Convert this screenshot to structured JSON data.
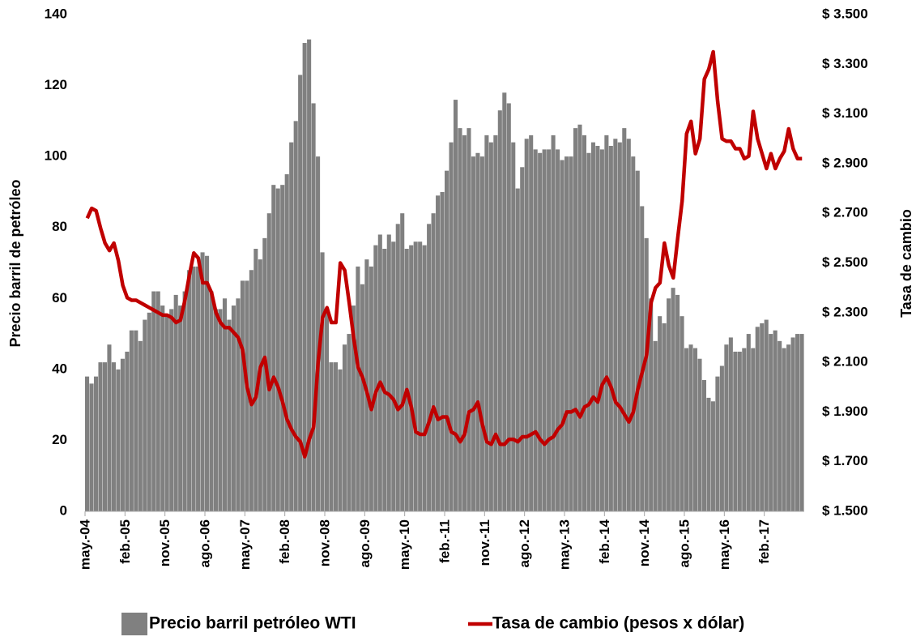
{
  "chart_data": {
    "type": "combo",
    "ylabel": "Precio barril de petróleo",
    "y2label": "Tasa de cambio",
    "ylim": [
      0,
      140
    ],
    "yticks": [
      0,
      20,
      40,
      60,
      80,
      100,
      120,
      140
    ],
    "y2lim": [
      1500,
      3500
    ],
    "y2ticks": [
      {
        "value": 1500,
        "label": "$ 1.500"
      },
      {
        "value": 1700,
        "label": "$ 1.700"
      },
      {
        "value": 1900,
        "label": "$ 1.900"
      },
      {
        "value": 2100,
        "label": "$ 2.100"
      },
      {
        "value": 2300,
        "label": "$ 2.300"
      },
      {
        "value": 2500,
        "label": "$ 2.500"
      },
      {
        "value": 2700,
        "label": "$ 2.700"
      },
      {
        "value": 2900,
        "label": "$ 2.900"
      },
      {
        "value": 3100,
        "label": "$ 3.100"
      },
      {
        "value": 3300,
        "label": "$ 3.300"
      },
      {
        "value": 3500,
        "label": "$ 3.500"
      }
    ],
    "grid": false,
    "legend": "bottom",
    "categories": [
      "may.-04",
      null,
      null,
      null,
      null,
      null,
      null,
      null,
      null,
      "feb.-05",
      null,
      null,
      null,
      null,
      null,
      null,
      null,
      null,
      "nov.-05",
      null,
      null,
      null,
      null,
      null,
      null,
      null,
      null,
      "ago.-06",
      null,
      null,
      null,
      null,
      null,
      null,
      null,
      null,
      "may.-07",
      null,
      null,
      null,
      null,
      null,
      null,
      null,
      null,
      "feb.-08",
      null,
      null,
      null,
      null,
      null,
      null,
      null,
      null,
      "nov.-08",
      null,
      null,
      null,
      null,
      null,
      null,
      null,
      null,
      "ago.-09",
      null,
      null,
      null,
      null,
      null,
      null,
      null,
      null,
      "may.-10",
      null,
      null,
      null,
      null,
      null,
      null,
      null,
      null,
      "feb.-11",
      null,
      null,
      null,
      null,
      null,
      null,
      null,
      null,
      "nov.-11",
      null,
      null,
      null,
      null,
      null,
      null,
      null,
      null,
      "ago.-12",
      null,
      null,
      null,
      null,
      null,
      null,
      null,
      null,
      "may.-13",
      null,
      null,
      null,
      null,
      null,
      null,
      null,
      null,
      "feb.-14",
      null,
      null,
      null,
      null,
      null,
      null,
      null,
      null,
      "nov.-14",
      null,
      null,
      null,
      null,
      null,
      null,
      null,
      null,
      "ago.-15",
      null,
      null,
      null,
      null,
      null,
      null,
      null,
      null,
      "may.-16",
      null,
      null,
      null,
      null,
      null,
      null,
      null,
      null,
      "feb.-17",
      null,
      null,
      null,
      null,
      null,
      null,
      null,
      null
    ],
    "series": [
      {
        "name": "Precio barril petróleo WTI",
        "type": "bar",
        "color": "#808080",
        "values": [
          38,
          36,
          38,
          42,
          42,
          47,
          42,
          40,
          43,
          45,
          51,
          51,
          48,
          54,
          56,
          62,
          62,
          58,
          55,
          57,
          61,
          58,
          62,
          68,
          69,
          69,
          73,
          72,
          62,
          57,
          57,
          60,
          54,
          58,
          60,
          65,
          65,
          68,
          74,
          71,
          77,
          84,
          92,
          91,
          92,
          95,
          104,
          110,
          123,
          132,
          133,
          115,
          100,
          73,
          57,
          42,
          42,
          40,
          47,
          50,
          58,
          69,
          64,
          71,
          69,
          75,
          78,
          74,
          78,
          76,
          81,
          84,
          74,
          75,
          76,
          76,
          75,
          81,
          84,
          89,
          90,
          96,
          104,
          116,
          108,
          106,
          108,
          100,
          101,
          100,
          106,
          104,
          106,
          113,
          118,
          115,
          104,
          91,
          97,
          105,
          106,
          102,
          101,
          102,
          102,
          106,
          102,
          99,
          100,
          100,
          108,
          109,
          106,
          101,
          104,
          103,
          102,
          106,
          103,
          105,
          104,
          108,
          105,
          100,
          96,
          86,
          77,
          60,
          48,
          55,
          53,
          60,
          63,
          61,
          55,
          46,
          47,
          46,
          43,
          37,
          32,
          31,
          38,
          41,
          47,
          49,
          45,
          45,
          46,
          50,
          46,
          52,
          53,
          54,
          50,
          51,
          48,
          46,
          47,
          49,
          50,
          50
        ]
      },
      {
        "name": "Tasa de cambio (pesos x dólar)",
        "type": "line",
        "axis": "y2",
        "color": "#c00000",
        "values": [
          2680,
          2720,
          2710,
          2640,
          2580,
          2550,
          2580,
          2510,
          2410,
          2360,
          2350,
          2350,
          2340,
          2330,
          2320,
          2310,
          2300,
          2290,
          2290,
          2280,
          2260,
          2270,
          2350,
          2450,
          2540,
          2520,
          2420,
          2420,
          2380,
          2300,
          2260,
          2240,
          2240,
          2220,
          2200,
          2150,
          2000,
          1930,
          1960,
          2080,
          2120,
          1990,
          2040,
          2000,
          1940,
          1870,
          1830,
          1800,
          1780,
          1720,
          1790,
          1840,
          2100,
          2280,
          2320,
          2260,
          2260,
          2500,
          2470,
          2340,
          2200,
          2080,
          2040,
          1980,
          1910,
          1980,
          2020,
          1980,
          1970,
          1950,
          1910,
          1930,
          1990,
          1920,
          1820,
          1810,
          1810,
          1860,
          1920,
          1870,
          1880,
          1880,
          1820,
          1810,
          1780,
          1810,
          1900,
          1910,
          1940,
          1850,
          1780,
          1770,
          1810,
          1770,
          1770,
          1790,
          1790,
          1780,
          1800,
          1800,
          1810,
          1820,
          1790,
          1770,
          1790,
          1800,
          1830,
          1850,
          1900,
          1900,
          1910,
          1880,
          1920,
          1930,
          1960,
          1940,
          2010,
          2040,
          2000,
          1940,
          1920,
          1890,
          1860,
          1900,
          1990,
          2060,
          2130,
          2340,
          2400,
          2420,
          2580,
          2490,
          2440,
          2600,
          2750,
          3020,
          3070,
          2940,
          3000,
          3240,
          3280,
          3350,
          3150,
          3000,
          2990,
          2990,
          2960,
          2960,
          2920,
          2930,
          3110,
          3000,
          2940,
          2880,
          2940,
          2880,
          2920,
          2950,
          3040,
          2960,
          2920,
          2920
        ]
      }
    ]
  }
}
